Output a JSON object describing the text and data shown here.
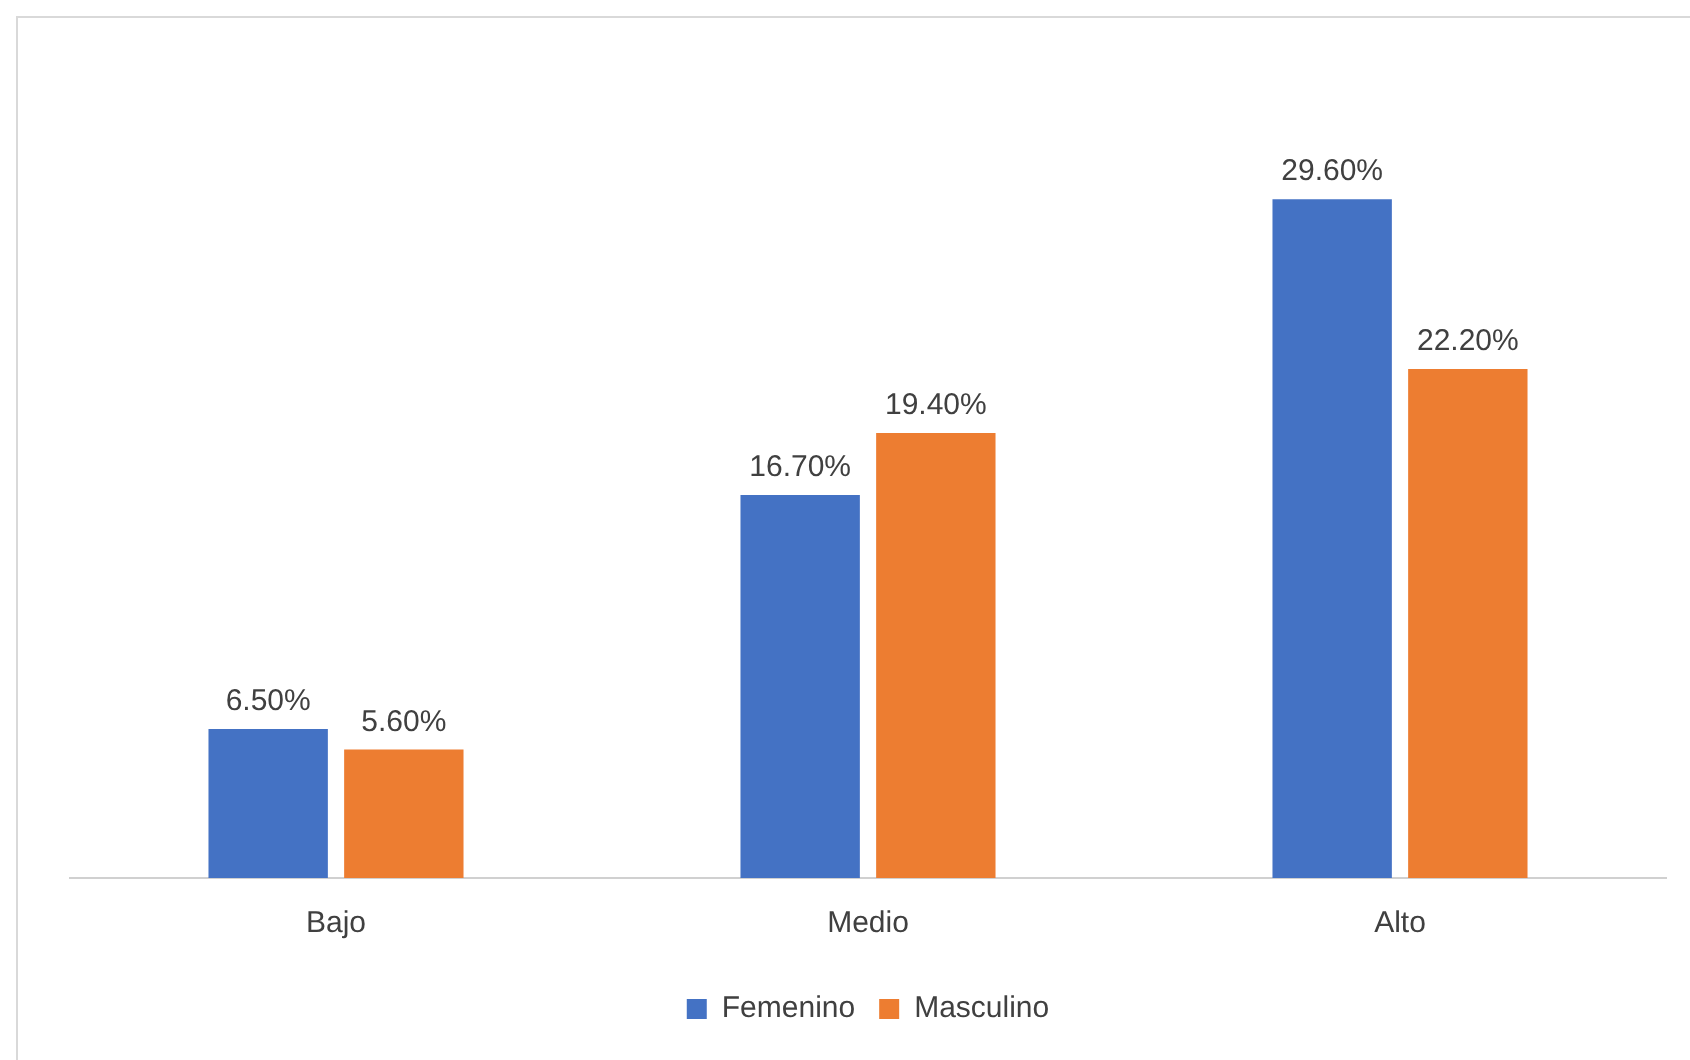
{
  "chart_data": {
    "type": "bar",
    "categories": [
      "Bajo",
      "Medio",
      "Alto"
    ],
    "series": [
      {
        "name": "Femenino",
        "color": "#4472c4",
        "values": [
          6.5,
          16.7,
          29.6
        ],
        "value_labels": [
          "6.50%",
          "16.70%",
          "29.60%"
        ]
      },
      {
        "name": "Masculino",
        "color": "#ed7d31",
        "values": [
          5.6,
          19.4,
          22.2
        ],
        "value_labels": [
          "5.60%",
          "19.40%",
          "22.20%"
        ]
      }
    ],
    "grid": false,
    "legend": "bottom",
    "tick_labels": "x"
  }
}
